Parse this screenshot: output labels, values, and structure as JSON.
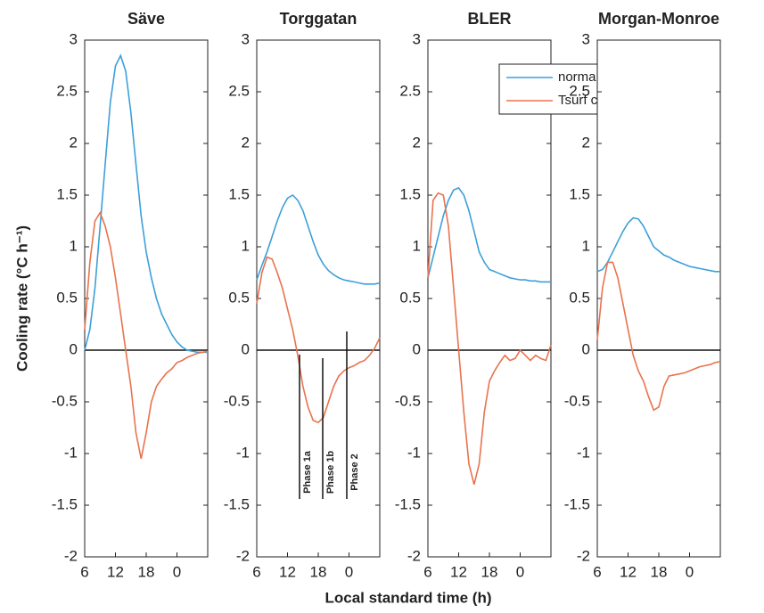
{
  "xlabel": "Local standard time (h)",
  "ylabel": "Cooling rate (°C h⁻¹)",
  "chart_data": [
    {
      "type": "line",
      "title": "Säve",
      "x": [
        6,
        7,
        8,
        9,
        10,
        11,
        12,
        13,
        14,
        15,
        16,
        17,
        18,
        19,
        20,
        21,
        22,
        23,
        24,
        25,
        26,
        27,
        28,
        29,
        30
      ],
      "xlim": [
        6,
        30
      ],
      "xticks": [
        6,
        12,
        18,
        {
          "value": 24,
          "label": "0"
        }
      ],
      "ylim": [
        -2,
        3
      ],
      "yticks": [
        -2,
        -1.5,
        -1,
        -0.5,
        0,
        0.5,
        1,
        1.5,
        2,
        2.5,
        3
      ],
      "series": [
        {
          "color": "#3d9fd9",
          "values": [
            0,
            0.2,
            0.6,
            1.2,
            1.8,
            2.4,
            2.75,
            2.85,
            2.7,
            2.3,
            1.8,
            1.3,
            0.95,
            0.7,
            0.5,
            0.35,
            0.25,
            0.15,
            0.08,
            0.03,
            0,
            -0.01,
            -0.02,
            -0.02,
            -0.02
          ]
        },
        {
          "color": "#e8734f",
          "values": [
            0.2,
            0.85,
            1.25,
            1.33,
            1.2,
            1.0,
            0.7,
            0.35,
            0,
            -0.35,
            -0.8,
            -1.05,
            -0.8,
            -0.5,
            -0.35,
            -0.28,
            -0.22,
            -0.18,
            -0.12,
            -0.1,
            -0.07,
            -0.05,
            -0.03,
            -0.02,
            -0.01
          ]
        }
      ]
    },
    {
      "type": "line",
      "title": "Torggatan",
      "x": [
        6,
        7,
        8,
        9,
        10,
        11,
        12,
        13,
        14,
        15,
        16,
        17,
        18,
        19,
        20,
        21,
        22,
        23,
        24,
        25,
        26,
        27,
        28,
        29,
        30
      ],
      "xlim": [
        6,
        30
      ],
      "xticks": [
        6,
        12,
        18,
        {
          "value": 24,
          "label": "0"
        }
      ],
      "ylim": [
        -2,
        3
      ],
      "yticks": [
        -2,
        -1.5,
        -1,
        -0.5,
        0,
        0.5,
        1,
        1.5,
        2,
        2.5,
        3
      ],
      "annotations": [
        "Phase 1a",
        "Phase 1b",
        "Phase 2"
      ],
      "series": [
        {
          "color": "#3d9fd9",
          "values": [
            0.68,
            0.82,
            0.95,
            1.1,
            1.25,
            1.38,
            1.47,
            1.5,
            1.45,
            1.35,
            1.2,
            1.05,
            0.92,
            0.83,
            0.77,
            0.73,
            0.7,
            0.68,
            0.67,
            0.66,
            0.65,
            0.64,
            0.64,
            0.64,
            0.65
          ]
        },
        {
          "color": "#e8734f",
          "values": [
            0.45,
            0.75,
            0.9,
            0.88,
            0.75,
            0.6,
            0.4,
            0.2,
            -0.05,
            -0.35,
            -0.55,
            -0.68,
            -0.7,
            -0.65,
            -0.5,
            -0.35,
            -0.25,
            -0.2,
            -0.17,
            -0.15,
            -0.12,
            -0.1,
            -0.05,
            0.02,
            0.12
          ]
        }
      ]
    },
    {
      "type": "line",
      "title": "BLER",
      "x": [
        6,
        7,
        8,
        9,
        10,
        11,
        12,
        13,
        14,
        15,
        16,
        17,
        18,
        19,
        20,
        21,
        22,
        23,
        24,
        25,
        26,
        27,
        28,
        29,
        30
      ],
      "xlim": [
        6,
        30
      ],
      "xticks": [
        6,
        12,
        18,
        {
          "value": 24,
          "label": "0"
        }
      ],
      "ylim": [
        -2,
        3
      ],
      "yticks": [
        -2,
        -1.5,
        -1,
        -0.5,
        0,
        0.5,
        1,
        1.5,
        2,
        2.5,
        3
      ],
      "legend": "upper right",
      "series": [
        {
          "name": "normalised Tsurf",
          "color": "#3d9fd9",
          "values": [
            0.7,
            0.9,
            1.1,
            1.3,
            1.45,
            1.55,
            1.57,
            1.5,
            1.35,
            1.15,
            0.95,
            0.85,
            0.78,
            0.76,
            0.74,
            0.72,
            0.7,
            0.69,
            0.68,
            0.68,
            0.67,
            0.67,
            0.66,
            0.66,
            0.66
          ]
        },
        {
          "name": "Tsurf change",
          "color": "#e8734f",
          "values": [
            0.7,
            1.45,
            1.52,
            1.5,
            1.2,
            0.6,
            0,
            -0.6,
            -1.1,
            -1.3,
            -1.1,
            -0.6,
            -0.3,
            -0.2,
            -0.12,
            -0.05,
            -0.1,
            -0.08,
            0,
            -0.05,
            -0.1,
            -0.05,
            -0.08,
            -0.1,
            0.05
          ]
        }
      ]
    },
    {
      "type": "line",
      "title": "Morgan-Monroe",
      "x": [
        6,
        7,
        8,
        9,
        10,
        11,
        12,
        13,
        14,
        15,
        16,
        17,
        18,
        19,
        20,
        21,
        22,
        23,
        24,
        25,
        26,
        27,
        28,
        29,
        30
      ],
      "xlim": [
        6,
        30
      ],
      "xticks": [
        6,
        12,
        18,
        {
          "value": 24,
          "label": "0"
        }
      ],
      "ylim": [
        -2,
        3
      ],
      "yticks": [
        -2,
        -1.5,
        -1,
        -0.5,
        0,
        0.5,
        1,
        1.5,
        2,
        2.5,
        3
      ],
      "series": [
        {
          "color": "#3d9fd9",
          "values": [
            0.76,
            0.78,
            0.85,
            0.95,
            1.05,
            1.15,
            1.23,
            1.28,
            1.27,
            1.2,
            1.1,
            1.0,
            0.96,
            0.92,
            0.9,
            0.87,
            0.85,
            0.83,
            0.81,
            0.8,
            0.79,
            0.78,
            0.77,
            0.76,
            0.76
          ]
        },
        {
          "color": "#e8734f",
          "values": [
            0.1,
            0.6,
            0.85,
            0.85,
            0.7,
            0.45,
            0.2,
            -0.05,
            -0.2,
            -0.3,
            -0.45,
            -0.58,
            -0.55,
            -0.35,
            -0.25,
            -0.24,
            -0.23,
            -0.22,
            -0.2,
            -0.18,
            -0.16,
            -0.15,
            -0.14,
            -0.12,
            -0.11
          ]
        }
      ]
    }
  ]
}
